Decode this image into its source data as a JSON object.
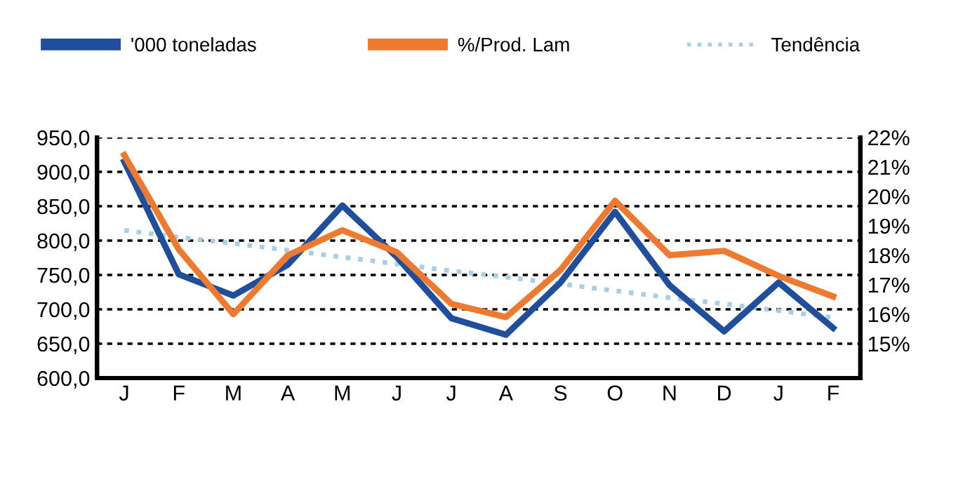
{
  "chart_data": {
    "type": "line",
    "categories": [
      "J",
      "F",
      "M",
      "A",
      "M",
      "J",
      "J",
      "A",
      "S",
      "O",
      "N",
      "D",
      "J",
      "F"
    ],
    "ylim": [
      600,
      950
    ],
    "yticks": [
      {
        "value": 600,
        "label": "600,0"
      },
      {
        "value": 650,
        "label": "650,0"
      },
      {
        "value": 700,
        "label": "700,0"
      },
      {
        "value": 750,
        "label": "750,0"
      },
      {
        "value": 800,
        "label": "800,0"
      },
      {
        "value": 850,
        "label": "850,0"
      },
      {
        "value": 900,
        "label": "900,0"
      },
      {
        "value": 950,
        "label": "950,0"
      }
    ],
    "y2lim": [
      13.83,
      22
    ],
    "y2ticks": [
      {
        "value": 15,
        "label": "15%"
      },
      {
        "value": 16,
        "label": "16%"
      },
      {
        "value": 17,
        "label": "17%"
      },
      {
        "value": 18,
        "label": "18%"
      },
      {
        "value": 19,
        "label": "19%"
      },
      {
        "value": 20,
        "label": "20%"
      },
      {
        "value": 21,
        "label": "21%"
      },
      {
        "value": 22,
        "label": "22%"
      }
    ],
    "grid": "y",
    "legend": "top left",
    "series": [
      {
        "name": "'000 toneladas",
        "color": "#1f4e9c",
        "values": [
          915,
          751,
          720,
          765,
          851,
          776,
          687,
          663,
          739,
          842,
          735,
          668,
          739,
          673
        ]
      },
      {
        "name": "%/Prod. Lam",
        "color": "#ee7a30",
        "axis": "y2",
        "values": [
          21.4,
          18.2,
          16.0,
          18.0,
          18.85,
          18.1,
          16.35,
          15.9,
          17.5,
          19.85,
          18.0,
          18.15,
          17.3,
          16.6
        ]
      },
      {
        "name": "Tendência",
        "color": "#a8cfe8",
        "line_style": "dotted",
        "values": [
          815,
          805,
          796,
          786,
          776,
          766,
          756,
          747,
          737,
          727,
          717,
          708,
          698,
          688
        ]
      }
    ]
  }
}
